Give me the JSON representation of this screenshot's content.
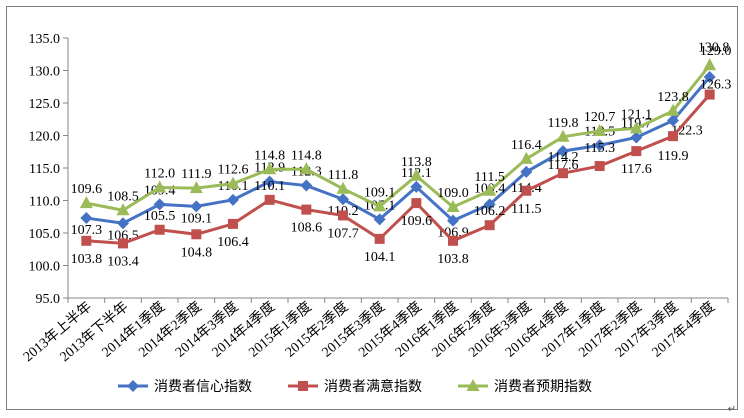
{
  "chart_data": {
    "type": "line",
    "title": "",
    "xlabel": "",
    "ylabel": "",
    "ylim": [
      95.0,
      135.0
    ],
    "yticks": [
      "95.0",
      "100.0",
      "105.0",
      "110.0",
      "115.0",
      "120.0",
      "125.0",
      "130.0",
      "135.0"
    ],
    "ytick_values": [
      95,
      100,
      105,
      110,
      115,
      120,
      125,
      130,
      135
    ],
    "grid": "none",
    "legend_position": "bottom",
    "categories": [
      "2013年上半年",
      "2013年下半年",
      "2014年1季度",
      "2014年2季度",
      "2014年3季度",
      "2014年4季度",
      "2015年1季度",
      "2015年2季度",
      "2015年3季度",
      "2015年4季度",
      "2016年1季度",
      "2016年2季度",
      "2016年3季度",
      "2016年4季度",
      "2017年1季度",
      "2017年2季度",
      "2017年3季度",
      "2017年4季度"
    ],
    "series": [
      {
        "name": "消费者信心指数",
        "color": "#4472c4",
        "marker": "diamond",
        "values": [
          107.3,
          106.5,
          109.4,
          109.1,
          110.1,
          112.9,
          112.3,
          110.2,
          107.1,
          112.1,
          106.9,
          109.4,
          114.4,
          117.6,
          118.5,
          119.7,
          122.3,
          129.0
        ],
        "labels": [
          "107.3",
          "106.5",
          "109.4",
          "109.1",
          "110.1",
          "112.9",
          "112.3",
          "110.2",
          "107.1",
          "112.1",
          "106.9",
          "109.4",
          "114.4",
          "117.6",
          "118.5",
          "119.7",
          "122.3",
          "129.0"
        ]
      },
      {
        "name": "消费者满意指数",
        "color": "#c0504d",
        "marker": "square",
        "values": [
          103.8,
          103.4,
          105.5,
          104.8,
          106.4,
          110.1,
          108.6,
          107.7,
          104.1,
          109.6,
          103.8,
          106.2,
          111.5,
          114.2,
          115.3,
          117.6,
          119.9,
          126.3
        ],
        "labels": [
          "103.8",
          "103.4",
          "105.5",
          "104.8",
          "106.4",
          "110.1",
          "108.6",
          "107.7",
          "104.1",
          "109.6",
          "103.8",
          "106.2",
          "111.5",
          "114.2",
          "115.3",
          "117.6",
          "119.9",
          "126.3"
        ]
      },
      {
        "name": "消费者预期指数",
        "color": "#9bbb59",
        "marker": "triangle",
        "values": [
          109.6,
          108.5,
          112.0,
          111.9,
          112.6,
          114.8,
          114.8,
          111.8,
          109.1,
          113.8,
          109.0,
          111.5,
          116.4,
          119.8,
          120.7,
          121.1,
          123.8,
          130.8
        ],
        "labels": [
          "109.6",
          "108.5",
          "112.0",
          "111.9",
          "112.6",
          "114.8",
          "114.8",
          "111.8",
          "109.1",
          "113.8",
          "109.0",
          "111.5",
          "116.4",
          "119.8",
          "120.7",
          "121.1",
          "123.8",
          "130.8"
        ]
      }
    ]
  },
  "corner_mark": "↵"
}
